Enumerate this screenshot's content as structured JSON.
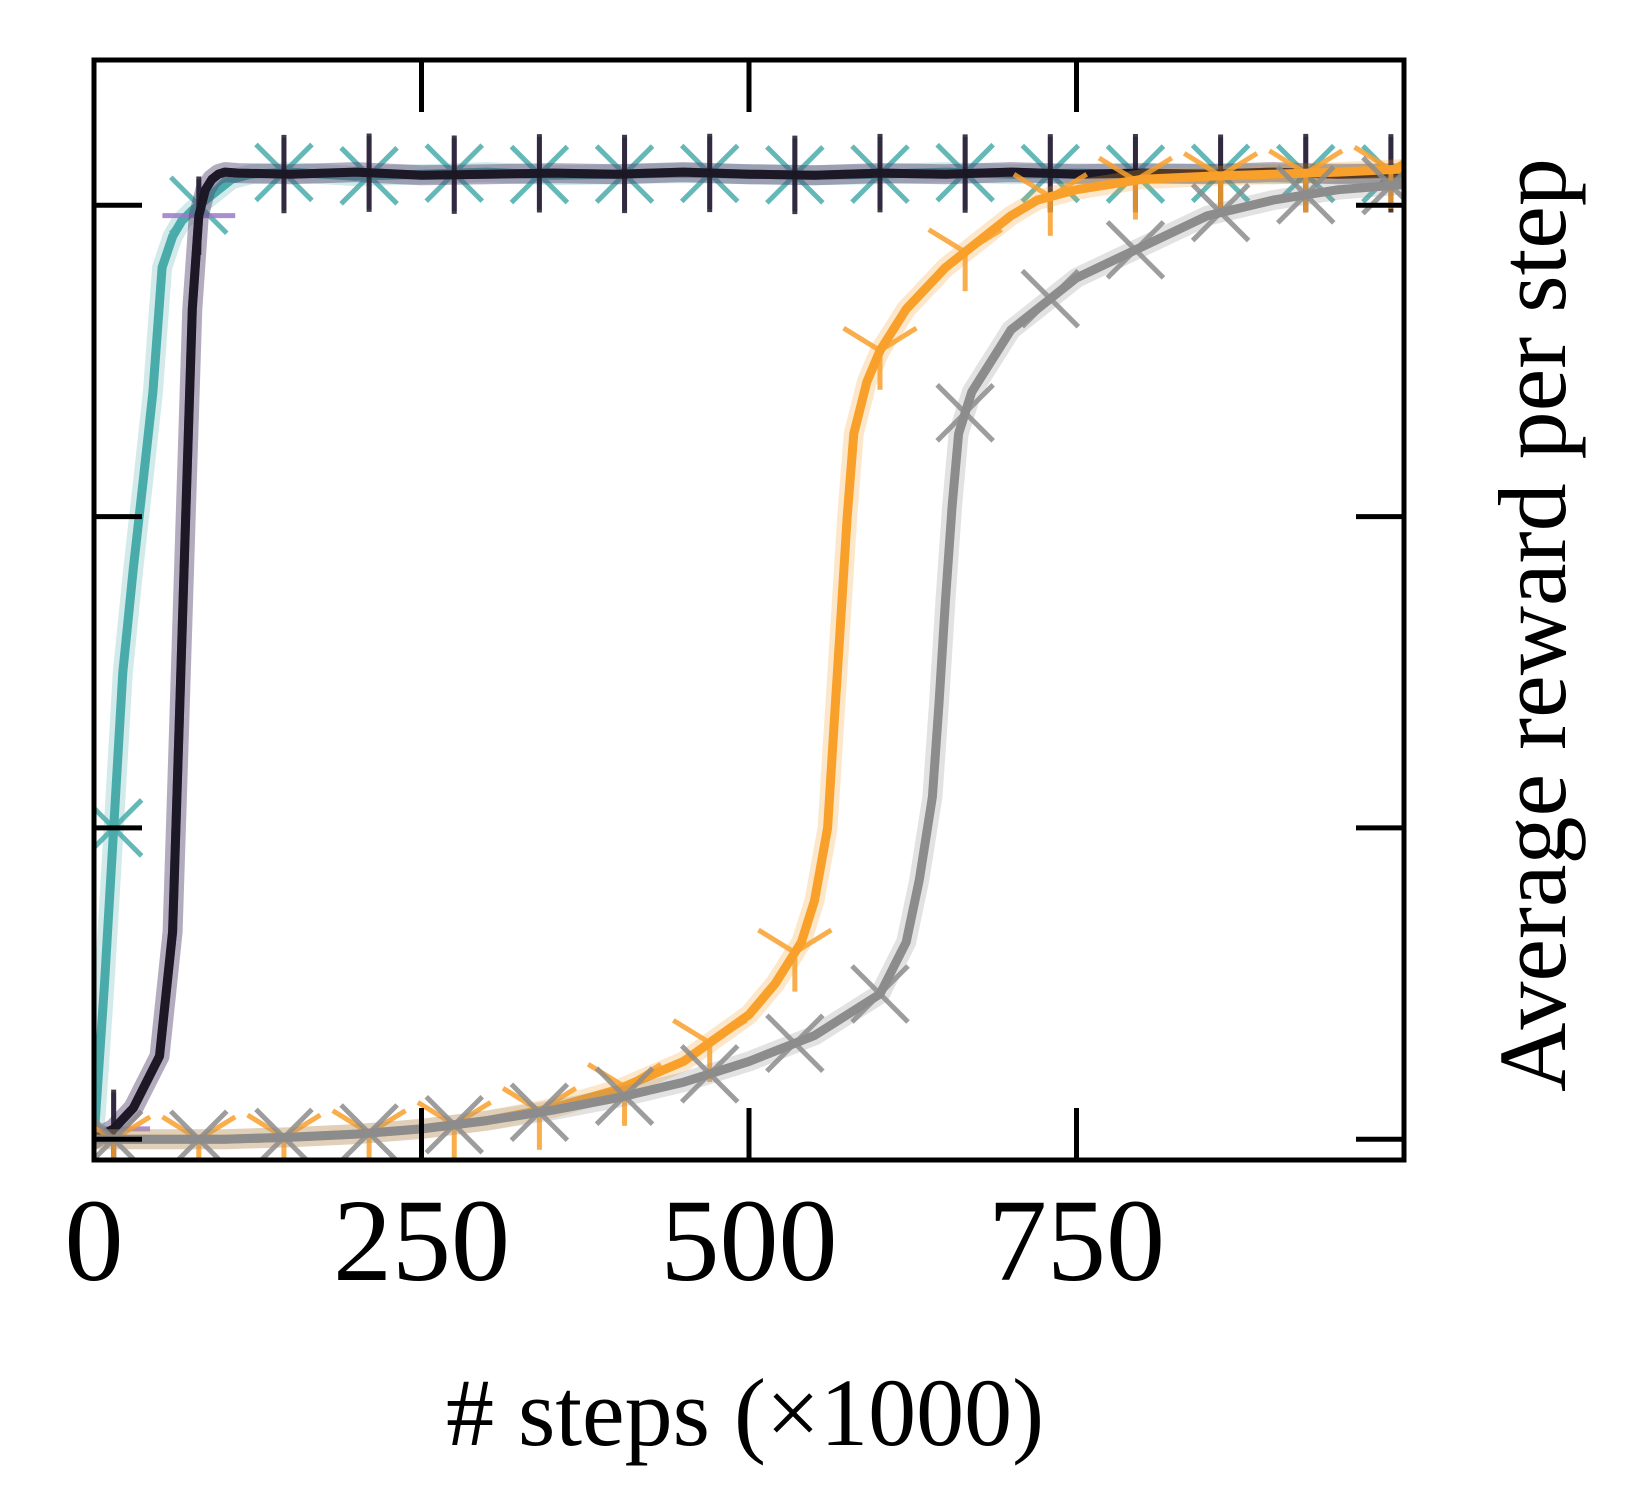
{
  "chart_data": {
    "type": "line",
    "title": "",
    "xlabel": "# steps (×1000)",
    "ylabel": "Average reward per step",
    "xlim": [
      0,
      1000
    ],
    "ylim": [
      -0.02,
      1.04
    ],
    "x_ticks": [
      0,
      250,
      500,
      750
    ],
    "x_tick_labels": [
      "0",
      "250",
      "500",
      "750"
    ],
    "y_ticks": [
      0.0,
      0.3,
      0.6,
      0.9
    ],
    "y_tick_labels": [
      "",
      "",
      "",
      ""
    ],
    "grid": false,
    "legend": "none",
    "series": [
      {
        "color": "#4aabab",
        "marker": "x",
        "marker_step": 65,
        "marker_start": 15,
        "x": [
          0,
          8,
          15,
          22,
          30,
          38,
          45,
          52,
          60,
          67,
          75,
          85,
          95,
          105,
          120,
          150,
          200,
          250,
          300,
          350,
          400,
          450,
          500,
          550,
          600,
          650,
          700,
          750,
          800,
          850,
          900,
          950,
          1000
        ],
        "y": [
          0.0,
          0.15,
          0.3,
          0.45,
          0.55,
          0.64,
          0.72,
          0.84,
          0.87,
          0.885,
          0.895,
          0.905,
          0.915,
          0.925,
          0.93,
          0.932,
          0.928,
          0.93,
          0.932,
          0.929,
          0.93,
          0.931,
          0.93,
          0.929,
          0.93,
          0.932,
          0.93,
          0.931,
          0.93,
          0.931,
          0.93,
          0.931,
          0.93
        ]
      },
      {
        "color": "#9b7ac8",
        "marker": "+",
        "marker_step": 65,
        "marker_start": 15,
        "x": [
          0,
          15,
          30,
          50,
          60,
          65,
          70,
          75,
          80,
          85,
          90,
          95,
          100,
          110,
          150,
          200,
          250,
          300,
          350,
          400,
          450,
          500,
          550,
          600,
          650,
          700,
          750,
          800,
          850,
          900,
          950,
          1000
        ],
        "y": [
          0.0,
          0.01,
          0.03,
          0.08,
          0.2,
          0.4,
          0.6,
          0.8,
          0.89,
          0.915,
          0.925,
          0.93,
          0.932,
          0.931,
          0.93,
          0.932,
          0.929,
          0.93,
          0.931,
          0.93,
          0.932,
          0.93,
          0.929,
          0.931,
          0.93,
          0.932,
          0.93,
          0.931,
          0.93,
          0.932,
          0.93,
          0.931
        ]
      },
      {
        "color": "#1c1826",
        "marker": "|",
        "marker_step": 65,
        "marker_start": 15,
        "x": [
          0,
          15,
          30,
          50,
          60,
          65,
          70,
          75,
          80,
          85,
          90,
          95,
          100,
          110,
          150,
          200,
          250,
          300,
          350,
          400,
          450,
          500,
          550,
          600,
          650,
          700,
          750,
          800,
          850,
          900,
          950,
          1000
        ],
        "y": [
          0.0,
          0.01,
          0.03,
          0.08,
          0.2,
          0.4,
          0.6,
          0.8,
          0.89,
          0.915,
          0.925,
          0.93,
          0.932,
          0.931,
          0.93,
          0.932,
          0.929,
          0.93,
          0.931,
          0.93,
          0.932,
          0.93,
          0.929,
          0.931,
          0.93,
          0.932,
          0.93,
          0.931,
          0.93,
          0.932,
          0.93,
          0.931
        ]
      },
      {
        "color": "#f9a02b",
        "marker": "1",
        "marker_step": 65,
        "marker_start": 15,
        "x": [
          0,
          50,
          100,
          150,
          200,
          250,
          300,
          350,
          400,
          450,
          500,
          520,
          540,
          550,
          560,
          565,
          570,
          575,
          580,
          590,
          600,
          620,
          650,
          680,
          700,
          720,
          750,
          800,
          850,
          900,
          950,
          1000
        ],
        "y": [
          0.0,
          0.0,
          0.0,
          0.002,
          0.005,
          0.01,
          0.018,
          0.03,
          0.048,
          0.075,
          0.12,
          0.15,
          0.19,
          0.23,
          0.3,
          0.4,
          0.5,
          0.6,
          0.68,
          0.73,
          0.76,
          0.8,
          0.84,
          0.87,
          0.89,
          0.905,
          0.915,
          0.925,
          0.928,
          0.93,
          0.932,
          0.935
        ]
      },
      {
        "color": "#8c8c8c",
        "marker": "x",
        "marker_step": 65,
        "marker_start": 15,
        "x": [
          0,
          50,
          100,
          150,
          200,
          250,
          300,
          350,
          400,
          450,
          500,
          550,
          600,
          620,
          630,
          640,
          645,
          650,
          655,
          660,
          670,
          680,
          690,
          700,
          720,
          750,
          800,
          850,
          900,
          950,
          1000
        ],
        "y": [
          0.0,
          0.0,
          0.0,
          0.002,
          0.005,
          0.01,
          0.018,
          0.028,
          0.04,
          0.055,
          0.075,
          0.1,
          0.14,
          0.19,
          0.25,
          0.33,
          0.42,
          0.52,
          0.61,
          0.68,
          0.72,
          0.74,
          0.76,
          0.78,
          0.8,
          0.83,
          0.86,
          0.89,
          0.905,
          0.915,
          0.92
        ]
      }
    ]
  }
}
